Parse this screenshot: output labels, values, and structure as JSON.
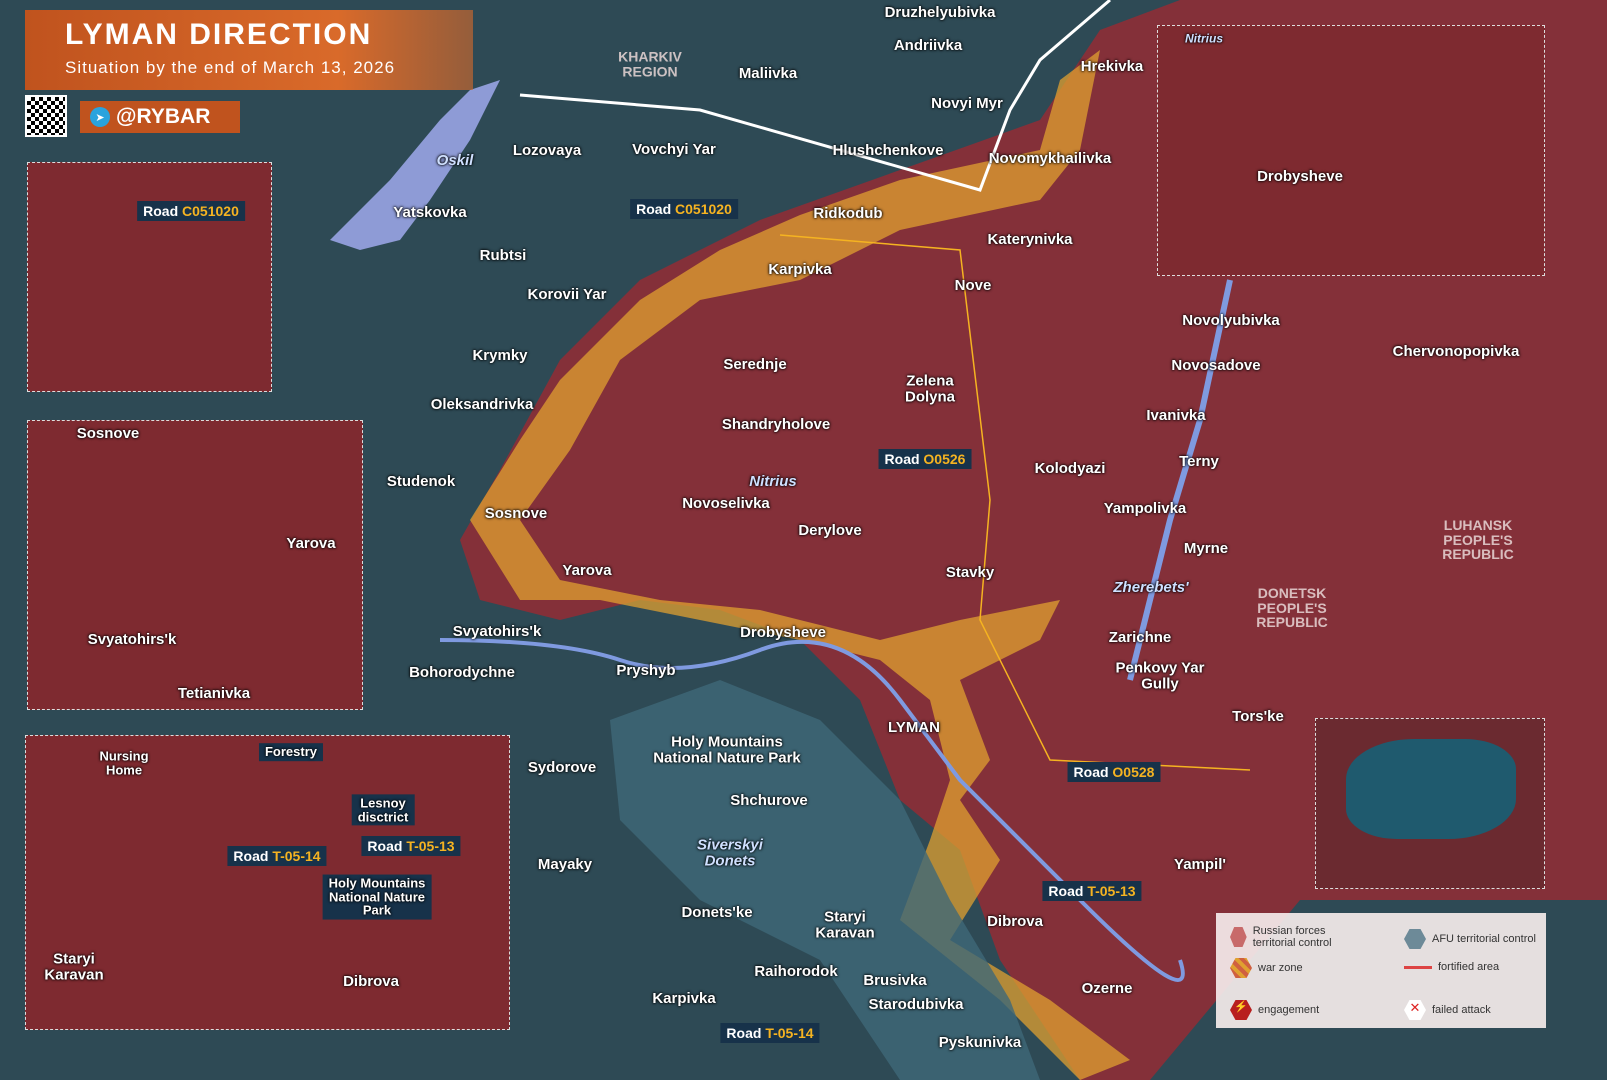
{
  "header": {
    "title": "LYMAN DIRECTION",
    "subtitle": "Situation by the end of March 13, 2026",
    "brand": "@RYBAR",
    "brand_icon": "telegram-icon"
  },
  "colors": {
    "russian_control": "#8e2e36",
    "war_zone": "#e0a030",
    "afu_control": "#2f4d5a",
    "water": "#8e9bd6",
    "engagement": "#d42a2a",
    "accent": "#c0531e"
  },
  "places": [
    "Druzhelyubivka",
    "Andriivka",
    "Maliivka",
    "Hrekivka",
    "Novyi Myr",
    "Lozovaya",
    "Vovchyi Yar",
    "Hlushchenkove",
    "Novomykhailivka",
    "Yatskovka",
    "Ridkodub",
    "Katerynivka",
    "Rubtsi",
    "Karpivka",
    "Nove",
    "Korovii Yar",
    "Krymky",
    "Serednje",
    "Zelena\nDolyna",
    "Oleksandrivka",
    "Shandryholove",
    "Studenok",
    "Kolodyazi",
    "Novoselivka",
    "Sosnove",
    "Derylove",
    "Yarova",
    "Stavky",
    "Drobysheve",
    "Svyatohirs'k",
    "Zarichne",
    "Pryshyb",
    "Bohorodychne",
    "Tors'ke",
    "LYMAN",
    "Sydorove",
    "Shchurove",
    "Mayaky",
    "Yampil'",
    "Donets'ke",
    "Staryi\nKaravan",
    "Dibrova",
    "Raihorodok",
    "Brusivka",
    "Ozerne",
    "Karpivka",
    "Starodubivka",
    "Pyskunivka",
    "Novolyubivka",
    "Chervonopopivka",
    "Novosadove",
    "Ivanivka",
    "Terny",
    "Yampolivka",
    "Myrne",
    "Holy Mountains\nNational Nature Park",
    "Penkovy Yar\nGully"
  ],
  "regions": [
    "KHARKIV\nREGION",
    "LUHANSK\nPEOPLE'S\nREPUBLIC",
    "DONETSK\nPEOPLE'S\nREPUBLIC"
  ],
  "rivers": [
    "Oskil",
    "Nitrius",
    "Zherebets'",
    "Siverskyi\nDonets"
  ],
  "roads": [
    {
      "prefix": "Road",
      "code": "C051020"
    },
    {
      "prefix": "Road",
      "code": "O0526"
    },
    {
      "prefix": "Road",
      "code": "O0528"
    },
    {
      "prefix": "Road",
      "code": "T-05-13"
    },
    {
      "prefix": "Road",
      "code": "T-05-14"
    }
  ],
  "insets": {
    "road_c051020": {
      "prefix": "Road",
      "code": "C051020"
    },
    "svyatohirsk": {
      "places": [
        "Sosnove",
        "Yarova",
        "Svyatohirs'k",
        "Tetianivka"
      ]
    },
    "drobysheve": {
      "places": [
        "Nitrius",
        "Drobysheve"
      ]
    },
    "lyman_forest": {
      "places": [
        "Nursing\nHome",
        "Forestry",
        "Lesnoy\ndisctrict",
        "Holy Mountains\nNational Nature\nPark",
        "Staryi\nKaravan",
        "Dibrova"
      ],
      "roads": [
        {
          "prefix": "Road",
          "code": "T-05-13"
        },
        {
          "prefix": "Road",
          "code": "T-05-14"
        }
      ]
    }
  },
  "legend": [
    {
      "icon": "russian-control-hex",
      "label": "Russian forces territorial control"
    },
    {
      "icon": "afu-control-hex",
      "label": "AFU territorial control"
    },
    {
      "icon": "war-zone-hex",
      "label": "war zone"
    },
    {
      "icon": "fortified-line",
      "label": "fortified area"
    },
    {
      "icon": "engagement-icon",
      "label": "engagement"
    },
    {
      "icon": "failed-attack-icon",
      "label": "failed attack"
    }
  ]
}
